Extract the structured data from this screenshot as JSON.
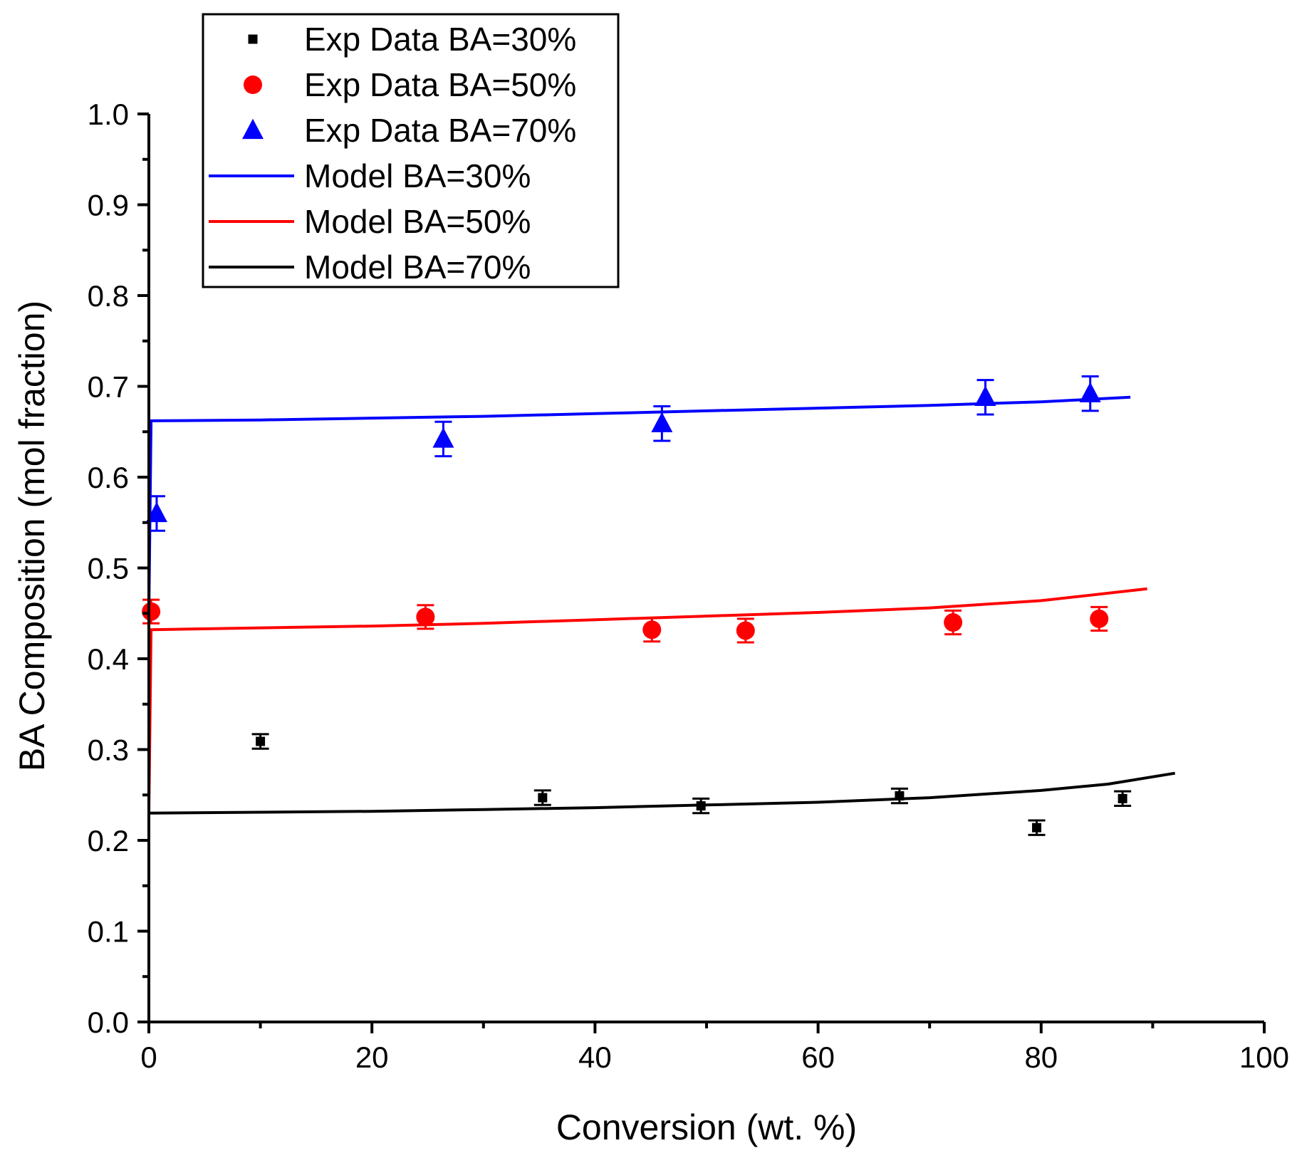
{
  "chart_data": {
    "type": "scatter",
    "title": "",
    "xlabel": "Conversion (wt. %)",
    "ylabel": "BA Composition (mol fraction)",
    "xlim": [
      0,
      100
    ],
    "ylim": [
      0.0,
      1.0
    ],
    "x_ticks": [
      "0",
      "20",
      "40",
      "60",
      "80",
      "100"
    ],
    "y_ticks": [
      "0.0",
      "0.1",
      "0.2",
      "0.3",
      "0.4",
      "0.5",
      "0.6",
      "0.7",
      "0.8",
      "0.9",
      "1.0"
    ],
    "grid": false,
    "legend_position": "top-left",
    "series": [
      {
        "name": "Exp Data BA=30%",
        "kind": "points",
        "marker": "square",
        "color": "#000000",
        "points": [
          [
            10,
            0.309
          ],
          [
            35.3,
            0.247
          ],
          [
            49.5,
            0.238
          ],
          [
            67.3,
            0.249
          ],
          [
            79.6,
            0.214
          ],
          [
            87.3,
            0.246
          ]
        ],
        "error": 0.008
      },
      {
        "name": "Exp Data BA=50%",
        "kind": "points",
        "marker": "circle",
        "color": "#ff0000",
        "points": [
          [
            0.2,
            0.452
          ],
          [
            24.8,
            0.446
          ],
          [
            45.1,
            0.432
          ],
          [
            53.5,
            0.431
          ],
          [
            72.1,
            0.44
          ],
          [
            85.2,
            0.444
          ]
        ],
        "error": 0.013
      },
      {
        "name": "Exp Data BA=70%",
        "kind": "points",
        "marker": "triangle",
        "color": "#0000ff",
        "points": [
          [
            0.7,
            0.56
          ],
          [
            26.4,
            0.642
          ],
          [
            46.0,
            0.659
          ],
          [
            75.0,
            0.688
          ],
          [
            84.4,
            0.692
          ]
        ],
        "error": 0.019
      },
      {
        "name": "Model BA=30%",
        "kind": "line",
        "color": "#0000ff",
        "points": [
          [
            0,
            0.45
          ],
          [
            0.2,
            0.662
          ],
          [
            10,
            0.663
          ],
          [
            20,
            0.665
          ],
          [
            30,
            0.667
          ],
          [
            40,
            0.67
          ],
          [
            50,
            0.673
          ],
          [
            60,
            0.676
          ],
          [
            70,
            0.679
          ],
          [
            80,
            0.683
          ],
          [
            88,
            0.688
          ]
        ]
      },
      {
        "name": "Model BA=50%",
        "kind": "line",
        "color": "#ff0000",
        "points": [
          [
            0,
            0.23
          ],
          [
            0.2,
            0.432
          ],
          [
            10,
            0.434
          ],
          [
            20,
            0.436
          ],
          [
            30,
            0.439
          ],
          [
            40,
            0.443
          ],
          [
            50,
            0.447
          ],
          [
            60,
            0.451
          ],
          [
            70,
            0.456
          ],
          [
            80,
            0.464
          ],
          [
            89.5,
            0.477
          ]
        ]
      },
      {
        "name": "Model BA=70%",
        "kind": "line",
        "color": "#000000",
        "points": [
          [
            0,
            0.23
          ],
          [
            10,
            0.231
          ],
          [
            20,
            0.232
          ],
          [
            30,
            0.234
          ],
          [
            40,
            0.236
          ],
          [
            50,
            0.239
          ],
          [
            60,
            0.242
          ],
          [
            70,
            0.247
          ],
          [
            80,
            0.255
          ],
          [
            86,
            0.262
          ],
          [
            92,
            0.274
          ]
        ]
      }
    ]
  }
}
